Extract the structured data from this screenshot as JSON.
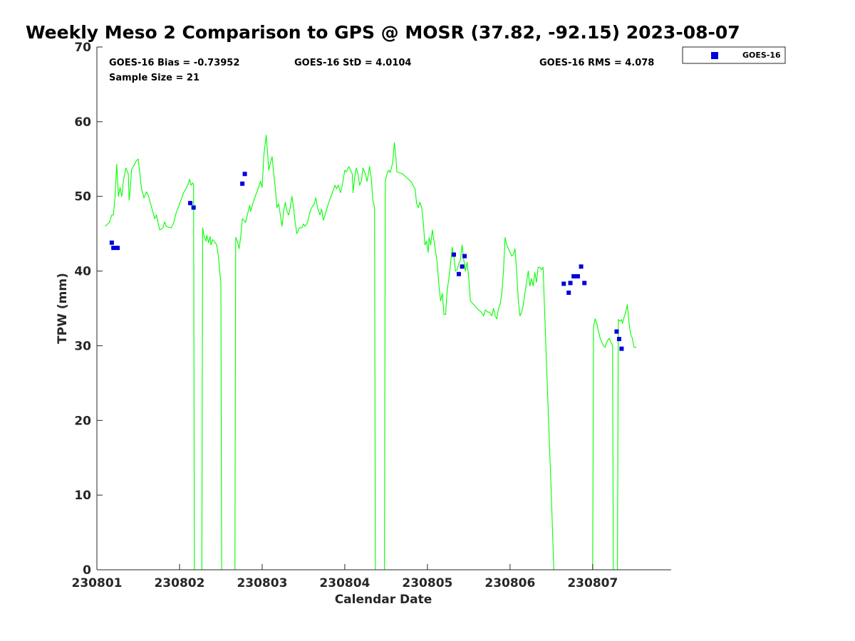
{
  "colors": {
    "gps_line": "#00ff00",
    "goes_marker": "#0000dd",
    "axis": "#262626",
    "background": "#ffffff"
  },
  "chart_data": {
    "type": "line",
    "title": "Weekly Meso 2 Comparison to GPS @ MOSR (37.82, -92.15) 2023-08-07",
    "xlabel": "Calendar Date",
    "ylabel": "TPW (mm)",
    "xlim": [
      0,
      6.95
    ],
    "ylim": [
      0,
      70
    ],
    "x_ticks": [
      0,
      1,
      2,
      3,
      4,
      5,
      6
    ],
    "x_tick_labels": [
      "230801",
      "230802",
      "230803",
      "230804",
      "230805",
      "230806",
      "230807"
    ],
    "y_ticks": [
      0,
      10,
      20,
      30,
      40,
      50,
      60,
      70
    ],
    "y_tick_labels": [
      "0",
      "10",
      "20",
      "30",
      "40",
      "50",
      "60",
      "70"
    ],
    "stats": {
      "bias": "GOES-16 Bias = -0.73952",
      "std": "GOES-16 StD = 4.0104",
      "rms": "GOES-16 RMS = 4.078",
      "sample": "Sample Size = 21"
    },
    "legend": {
      "position": "top-right-outside",
      "entries": [
        "GOES-16"
      ]
    },
    "series": [
      {
        "name": "GPS",
        "kind": "line",
        "color": "#00ff00",
        "points": [
          [
            0.1,
            46.0
          ],
          [
            0.15,
            46.5
          ],
          [
            0.18,
            47.5
          ],
          [
            0.2,
            47.5
          ],
          [
            0.22,
            50.0
          ],
          [
            0.24,
            54.3
          ],
          [
            0.26,
            50.0
          ],
          [
            0.28,
            51.2
          ],
          [
            0.3,
            50.0
          ],
          [
            0.32,
            52.0
          ],
          [
            0.35,
            53.8
          ],
          [
            0.38,
            53.0
          ],
          [
            0.39,
            49.5
          ],
          [
            0.4,
            50.5
          ],
          [
            0.42,
            53.6
          ],
          [
            0.45,
            54.2
          ],
          [
            0.48,
            54.8
          ],
          [
            0.5,
            55.0
          ],
          [
            0.52,
            53.0
          ],
          [
            0.54,
            51.0
          ],
          [
            0.57,
            49.8
          ],
          [
            0.6,
            50.6
          ],
          [
            0.62,
            50.2
          ],
          [
            0.65,
            49.0
          ],
          [
            0.68,
            47.8
          ],
          [
            0.7,
            47.0
          ],
          [
            0.72,
            47.5
          ],
          [
            0.74,
            46.5
          ],
          [
            0.76,
            45.5
          ],
          [
            0.8,
            45.8
          ],
          [
            0.82,
            46.6
          ],
          [
            0.84,
            46.0
          ],
          [
            0.88,
            45.8
          ],
          [
            0.9,
            45.8
          ],
          [
            0.93,
            46.5
          ],
          [
            0.96,
            47.8
          ],
          [
            1.0,
            49.0
          ],
          [
            1.05,
            50.5
          ],
          [
            1.1,
            51.5
          ],
          [
            1.12,
            52.3
          ],
          [
            1.14,
            51.5
          ],
          [
            1.16,
            51.8
          ],
          [
            1.17,
            51.5
          ],
          [
            1.18,
            0.0
          ],
          [
            1.27,
            0.0
          ],
          [
            1.28,
            45.8
          ],
          [
            1.3,
            44.5
          ],
          [
            1.32,
            44.0
          ],
          [
            1.33,
            44.8
          ],
          [
            1.35,
            43.8
          ],
          [
            1.37,
            44.6
          ],
          [
            1.38,
            43.5
          ],
          [
            1.4,
            44.2
          ],
          [
            1.42,
            44.0
          ],
          [
            1.45,
            43.5
          ],
          [
            1.47,
            42.0
          ],
          [
            1.49,
            39.5
          ],
          [
            1.5,
            38.5
          ],
          [
            1.51,
            0.0
          ],
          [
            1.67,
            0.0
          ],
          [
            1.68,
            44.5
          ],
          [
            1.7,
            44.0
          ],
          [
            1.72,
            43.0
          ],
          [
            1.74,
            44.5
          ],
          [
            1.76,
            47.0
          ],
          [
            1.78,
            46.8
          ],
          [
            1.8,
            46.5
          ],
          [
            1.82,
            47.5
          ],
          [
            1.85,
            48.8
          ],
          [
            1.86,
            48.0
          ],
          [
            1.9,
            49.5
          ],
          [
            1.95,
            51.0
          ],
          [
            1.98,
            52.0
          ],
          [
            2.0,
            51.2
          ],
          [
            2.02,
            55.5
          ],
          [
            2.05,
            58.2
          ],
          [
            2.07,
            55.0
          ],
          [
            2.08,
            53.5
          ],
          [
            2.1,
            54.5
          ],
          [
            2.12,
            55.3
          ],
          [
            2.14,
            53.0
          ],
          [
            2.16,
            51.0
          ],
          [
            2.18,
            48.5
          ],
          [
            2.2,
            49.0
          ],
          [
            2.22,
            47.5
          ],
          [
            2.24,
            46.0
          ],
          [
            2.26,
            48.0
          ],
          [
            2.28,
            49.2
          ],
          [
            2.3,
            48.0
          ],
          [
            2.32,
            47.5
          ],
          [
            2.34,
            48.5
          ],
          [
            2.36,
            50.0
          ],
          [
            2.38,
            48.5
          ],
          [
            2.4,
            46.5
          ],
          [
            2.42,
            45.0
          ],
          [
            2.45,
            45.8
          ],
          [
            2.48,
            45.8
          ],
          [
            2.5,
            46.3
          ],
          [
            2.52,
            46.0
          ],
          [
            2.55,
            46.5
          ],
          [
            2.58,
            48.0
          ],
          [
            2.6,
            48.5
          ],
          [
            2.63,
            49.0
          ],
          [
            2.65,
            49.8
          ],
          [
            2.67,
            48.5
          ],
          [
            2.7,
            47.5
          ],
          [
            2.72,
            48.3
          ],
          [
            2.74,
            46.8
          ],
          [
            2.76,
            47.5
          ],
          [
            2.8,
            49.0
          ],
          [
            2.85,
            50.5
          ],
          [
            2.88,
            51.5
          ],
          [
            2.9,
            51.0
          ],
          [
            2.92,
            51.5
          ],
          [
            2.95,
            50.5
          ],
          [
            2.97,
            51.5
          ],
          [
            3.0,
            53.5
          ],
          [
            3.02,
            53.3
          ],
          [
            3.05,
            54.0
          ],
          [
            3.07,
            53.5
          ],
          [
            3.09,
            53.0
          ],
          [
            3.1,
            50.5
          ],
          [
            3.12,
            52.5
          ],
          [
            3.14,
            53.8
          ],
          [
            3.16,
            53.0
          ],
          [
            3.18,
            51.5
          ],
          [
            3.2,
            52.0
          ],
          [
            3.22,
            53.8
          ],
          [
            3.25,
            53.0
          ],
          [
            3.27,
            52.0
          ],
          [
            3.3,
            54.0
          ],
          [
            3.32,
            52.5
          ],
          [
            3.34,
            49.5
          ],
          [
            3.36,
            48.5
          ],
          [
            3.37,
            0.0
          ],
          [
            3.48,
            0.0
          ],
          [
            3.49,
            52.0
          ],
          [
            3.51,
            53.0
          ],
          [
            3.53,
            53.5
          ],
          [
            3.55,
            53.2
          ],
          [
            3.58,
            54.5
          ],
          [
            3.6,
            57.2
          ],
          [
            3.62,
            55.0
          ],
          [
            3.63,
            53.3
          ],
          [
            3.7,
            53.0
          ],
          [
            3.75,
            52.5
          ],
          [
            3.8,
            52.0
          ],
          [
            3.85,
            51.0
          ],
          [
            3.87,
            49.0
          ],
          [
            3.89,
            48.5
          ],
          [
            3.91,
            49.2
          ],
          [
            3.93,
            48.5
          ],
          [
            3.95,
            46.5
          ],
          [
            3.97,
            43.5
          ],
          [
            3.99,
            44.0
          ],
          [
            4.01,
            42.5
          ],
          [
            4.02,
            44.5
          ],
          [
            4.04,
            43.5
          ],
          [
            4.06,
            45.5
          ],
          [
            4.08,
            44.0
          ],
          [
            4.1,
            42.5
          ],
          [
            4.12,
            41.0
          ],
          [
            4.14,
            38.0
          ],
          [
            4.16,
            36.0
          ],
          [
            4.18,
            37.0
          ],
          [
            4.2,
            34.2
          ],
          [
            4.22,
            34.2
          ],
          [
            4.24,
            37.5
          ],
          [
            4.26,
            39.0
          ],
          [
            4.28,
            41.0
          ],
          [
            4.3,
            43.2
          ],
          [
            4.32,
            42.0
          ],
          [
            4.34,
            40.0
          ],
          [
            4.36,
            40.2
          ],
          [
            4.38,
            41.0
          ],
          [
            4.4,
            41.5
          ],
          [
            4.42,
            43.5
          ],
          [
            4.44,
            41.5
          ],
          [
            4.46,
            40.0
          ],
          [
            4.48,
            41.2
          ],
          [
            4.5,
            39.0
          ],
          [
            4.52,
            36.0
          ],
          [
            4.6,
            35.0
          ],
          [
            4.65,
            34.5
          ],
          [
            4.68,
            34.0
          ],
          [
            4.7,
            34.8
          ],
          [
            4.73,
            34.5
          ],
          [
            4.75,
            34.5
          ],
          [
            4.78,
            34.0
          ],
          [
            4.8,
            35.0
          ],
          [
            4.82,
            34.0
          ],
          [
            4.84,
            33.6
          ],
          [
            4.86,
            35.0
          ],
          [
            4.88,
            35.5
          ],
          [
            4.9,
            37.0
          ],
          [
            4.92,
            40.0
          ],
          [
            4.94,
            44.5
          ],
          [
            4.96,
            43.5
          ],
          [
            4.98,
            43.0
          ],
          [
            5.0,
            42.5
          ],
          [
            5.02,
            42.0
          ],
          [
            5.04,
            42.2
          ],
          [
            5.06,
            43.0
          ],
          [
            5.08,
            40.0
          ],
          [
            5.1,
            36.0
          ],
          [
            5.12,
            34.0
          ],
          [
            5.14,
            34.5
          ],
          [
            5.16,
            35.5
          ],
          [
            5.18,
            37.0
          ],
          [
            5.2,
            38.5
          ],
          [
            5.22,
            40.0
          ],
          [
            5.24,
            38.0
          ],
          [
            5.26,
            39.0
          ],
          [
            5.28,
            38.0
          ],
          [
            5.3,
            39.8
          ],
          [
            5.32,
            38.5
          ],
          [
            5.34,
            40.5
          ],
          [
            5.36,
            40.5
          ],
          [
            5.38,
            40.2
          ],
          [
            5.4,
            40.5
          ],
          [
            5.42,
            34.0
          ],
          [
            5.45,
            25.0
          ],
          [
            5.5,
            10.0
          ],
          [
            5.53,
            0.0
          ],
          [
            6.0,
            0.0
          ],
          [
            6.01,
            32.5
          ],
          [
            6.03,
            33.6
          ],
          [
            6.05,
            33.0
          ],
          [
            6.07,
            32.0
          ],
          [
            6.09,
            31.0
          ],
          [
            6.11,
            30.5
          ],
          [
            6.13,
            30.0
          ],
          [
            6.15,
            29.8
          ],
          [
            6.17,
            30.5
          ],
          [
            6.2,
            31.0
          ],
          [
            6.22,
            30.5
          ],
          [
            6.24,
            30.0
          ],
          [
            6.25,
            0.0
          ],
          [
            6.3,
            0.0
          ],
          [
            6.31,
            33.5
          ],
          [
            6.33,
            33.3
          ],
          [
            6.35,
            33.5
          ],
          [
            6.36,
            33.0
          ],
          [
            6.38,
            33.8
          ],
          [
            6.4,
            34.5
          ],
          [
            6.42,
            35.5
          ],
          [
            6.44,
            33.0
          ],
          [
            6.46,
            31.5
          ],
          [
            6.48,
            31.0
          ],
          [
            6.5,
            29.8
          ],
          [
            6.53,
            29.8
          ]
        ]
      },
      {
        "name": "GOES-16",
        "kind": "scatter",
        "color": "#0000dd",
        "points": [
          [
            0.18,
            43.8
          ],
          [
            0.2,
            43.1
          ],
          [
            0.25,
            43.1
          ],
          [
            1.13,
            49.1
          ],
          [
            1.17,
            48.5
          ],
          [
            1.76,
            51.7
          ],
          [
            1.79,
            53.0
          ],
          [
            4.32,
            42.2
          ],
          [
            4.38,
            39.6
          ],
          [
            4.42,
            40.6
          ],
          [
            4.45,
            42.0
          ],
          [
            5.65,
            38.3
          ],
          [
            5.71,
            37.1
          ],
          [
            5.73,
            38.4
          ],
          [
            5.77,
            39.3
          ],
          [
            5.82,
            39.3
          ],
          [
            5.86,
            40.6
          ],
          [
            5.9,
            38.4
          ],
          [
            6.29,
            31.9
          ],
          [
            6.32,
            30.9
          ],
          [
            6.35,
            29.6
          ]
        ]
      }
    ]
  }
}
